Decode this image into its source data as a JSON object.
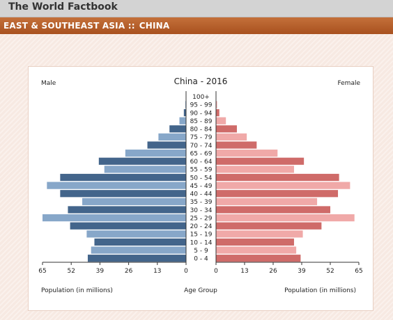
{
  "header": {
    "title": "The World Factbook"
  },
  "region": {
    "region_label": "EAST & SOUTHEAST ASIA ::",
    "country_label": "CHINA"
  },
  "chart_data": {
    "type": "bar",
    "title": "China - 2016",
    "left_label": "Male",
    "right_label": "Female",
    "xlabel_left": "Population (in millions)",
    "xlabel_center": "Age Group",
    "xlabel_right": "Population (in millions)",
    "xlim": [
      0,
      65
    ],
    "xticks": [
      "65",
      "52",
      "39",
      "26",
      "13",
      "0"
    ],
    "xticks_right": [
      "0",
      "13",
      "26",
      "39",
      "52",
      "65"
    ],
    "categories": [
      "100+",
      "95 - 99",
      "90 - 94",
      "85 - 89",
      "80 - 84",
      "75 - 79",
      "70 - 74",
      "65 - 69",
      "60 - 64",
      "55 - 59",
      "50 - 54",
      "45 - 49",
      "40 - 44",
      "35 - 39",
      "30 - 34",
      "25 - 29",
      "20 - 24",
      "15 - 19",
      "10 - 14",
      "5 - 9",
      "0 - 4"
    ],
    "series": [
      {
        "name": "Male",
        "values": [
          0.1,
          0.3,
          1,
          3,
          7.5,
          12.5,
          17.5,
          27.5,
          39.5,
          37,
          57,
          63,
          57,
          47,
          53.5,
          65,
          52.5,
          45,
          41.5,
          43,
          44.5
        ]
      },
      {
        "name": "Female",
        "values": [
          0.1,
          0.5,
          1.5,
          4.5,
          9.5,
          14,
          18.5,
          28,
          40,
          35.5,
          56,
          61,
          55.5,
          46,
          52,
          63,
          48,
          39.5,
          35.5,
          36.5,
          38.5
        ]
      }
    ],
    "colors": {
      "male_dark": "#43658b",
      "male_light": "#87a7c9",
      "female_dark": "#cf6b69",
      "female_light": "#f0a9a8"
    }
  }
}
